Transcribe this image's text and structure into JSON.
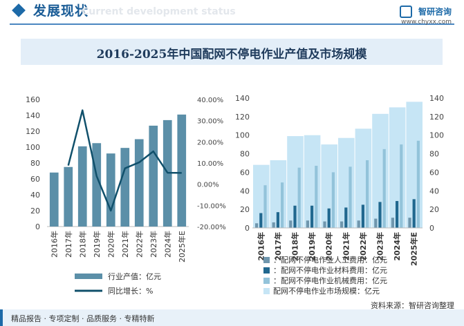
{
  "header": {
    "title": "发展现状",
    "ghost": "Current development status",
    "brand_name": "智研咨询",
    "brand_url": "www.chyxx.com"
  },
  "title": "2016-2025年中国配网不停电作业产值及市场规模",
  "footer": {
    "left": "精品报告 · 专项定制 · 品质服务 · 专精特新",
    "source": "资料来源：智研咨询整理"
  },
  "chart_data": [
    {
      "type": "bar",
      "categories": [
        "2016年",
        "2017年",
        "2018年",
        "2019年",
        "2020年",
        "2021年",
        "2022年",
        "2023年",
        "2024年",
        "2025年E"
      ],
      "series": [
        {
          "name": "行业产值：亿元",
          "kind": "bar",
          "axis": "left",
          "values": [
            68,
            75,
            101,
            105,
            92,
            99,
            110,
            127,
            134,
            141
          ],
          "color": "#5b8fa8"
        },
        {
          "name": "同比增长：%",
          "kind": "line",
          "axis": "right",
          "values": [
            null,
            8.8,
            34.9,
            3.8,
            -12.5,
            7.5,
            10.3,
            15.5,
            5.4,
            5.3
          ],
          "color": "#10506b"
        }
      ],
      "ylim": [
        0,
        160
      ],
      "yticks": [
        0,
        20,
        40,
        60,
        80,
        100,
        120,
        140,
        160
      ],
      "y2lim": [
        -20,
        40
      ],
      "y2ticks": [
        "-20.00%",
        "-10.00%",
        "0.00%",
        "10.00%",
        "20.00%",
        "30.00%",
        "40.00%"
      ],
      "legend_position": "bottom"
    },
    {
      "type": "bar",
      "categories": [
        "2016年",
        "2017年",
        "2018年",
        "2019年",
        "2020年",
        "2021年",
        "2022年",
        "2023年",
        "2024年",
        "2025年E"
      ],
      "series": [
        {
          "name": "：配网不停电作业人工费用：亿元",
          "axis": "left",
          "values": [
            5,
            6,
            8,
            8,
            7,
            7,
            8,
            10,
            11,
            11
          ],
          "color": "#6f96ad"
        },
        {
          "name": "：配网不停电作业材料费用：亿元",
          "axis": "left",
          "values": [
            16,
            17,
            24,
            24,
            21,
            22,
            25,
            28,
            29,
            31
          ],
          "color": "#21688f"
        },
        {
          "name": "：配网不停电作业机械费用：亿元",
          "axis": "left",
          "values": [
            46,
            49,
            65,
            67,
            60,
            66,
            73,
            85,
            90,
            94
          ],
          "color": "#93c3da"
        },
        {
          "name": "配网不停电作业市场规模：亿元",
          "axis": "right",
          "values": [
            68,
            73,
            99,
            100,
            90,
            97,
            107,
            123,
            130,
            136
          ],
          "color": "#c6e5f5"
        }
      ],
      "ylim": [
        0,
        140
      ],
      "yticks": [
        0,
        20,
        40,
        60,
        80,
        100,
        120,
        140
      ],
      "y2lim": [
        0,
        140
      ],
      "y2ticks": [
        0,
        20,
        40,
        60,
        80,
        100,
        120,
        140
      ],
      "legend_position": "bottom"
    }
  ]
}
